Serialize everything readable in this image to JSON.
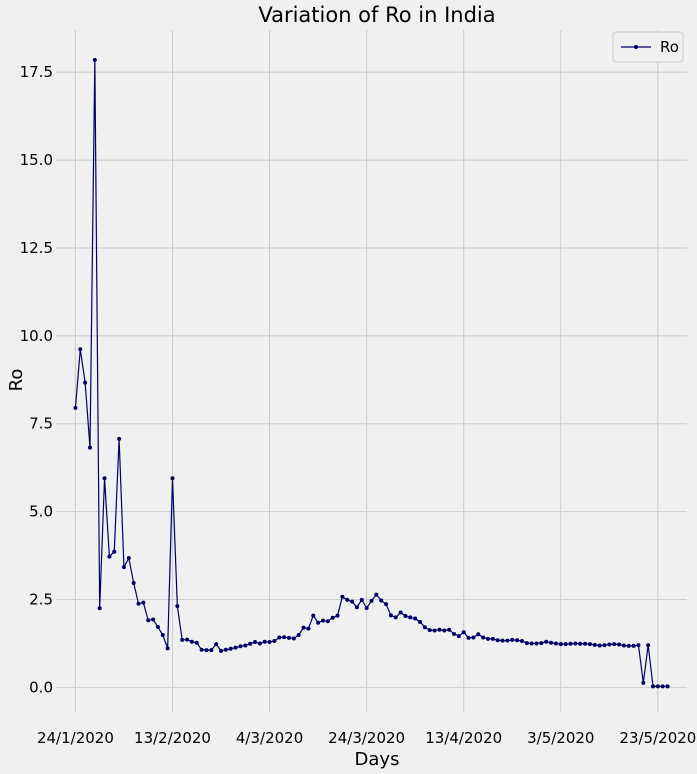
{
  "chart_data": {
    "type": "line",
    "title": "Variation of Ro in India",
    "xlabel": "Days",
    "ylabel": "Ro",
    "ylim": [
      -0.7,
      18.7
    ],
    "yticks": [
      "0.0",
      "2.5",
      "5.0",
      "7.5",
      "10.0",
      "12.5",
      "15.0",
      "17.5"
    ],
    "ytick_values": [
      0,
      2.5,
      5,
      7.5,
      10,
      12.5,
      15,
      17.5
    ],
    "xticks": [
      "24/1/2020",
      "13/2/2020",
      "4/3/2020",
      "24/3/2020",
      "13/4/2020",
      "3/5/2020",
      "23/5/2020"
    ],
    "xtick_days": [
      0,
      20,
      40,
      60,
      80,
      100,
      120
    ],
    "xlim": [
      -4,
      126
    ],
    "grid": true,
    "legend": "top-right",
    "color": "#000066",
    "series": [
      {
        "name": "Ro",
        "values": [
          7.95,
          9.62,
          8.67,
          6.82,
          17.85,
          2.25,
          5.95,
          3.72,
          3.86,
          7.07,
          3.42,
          3.68,
          2.97,
          2.38,
          2.41,
          1.91,
          1.93,
          1.72,
          1.49,
          1.11,
          5.95,
          2.31,
          1.35,
          1.36,
          1.3,
          1.27,
          1.07,
          1.06,
          1.06,
          1.23,
          1.04,
          1.07,
          1.1,
          1.13,
          1.17,
          1.19,
          1.24,
          1.29,
          1.25,
          1.3,
          1.29,
          1.32,
          1.42,
          1.43,
          1.41,
          1.39,
          1.49,
          1.7,
          1.67,
          2.04,
          1.84,
          1.9,
          1.88,
          1.98,
          2.04,
          2.58,
          2.49,
          2.44,
          2.28,
          2.49,
          2.26,
          2.46,
          2.64,
          2.47,
          2.37,
          2.05,
          1.99,
          2.13,
          2.03,
          1.99,
          1.96,
          1.86,
          1.71,
          1.63,
          1.62,
          1.64,
          1.62,
          1.64,
          1.52,
          1.46,
          1.57,
          1.41,
          1.42,
          1.51,
          1.42,
          1.38,
          1.38,
          1.34,
          1.33,
          1.33,
          1.35,
          1.34,
          1.32,
          1.26,
          1.25,
          1.25,
          1.26,
          1.3,
          1.27,
          1.25,
          1.23,
          1.23,
          1.24,
          1.25,
          1.24,
          1.24,
          1.23,
          1.21,
          1.19,
          1.2,
          1.22,
          1.23,
          1.22,
          1.19,
          1.18,
          1.18,
          1.2,
          0.13,
          1.2,
          0.03,
          0.03,
          0.03,
          0.03
        ]
      }
    ]
  }
}
